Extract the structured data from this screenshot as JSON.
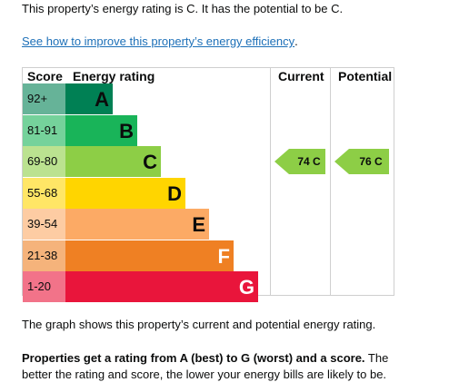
{
  "intro_text": "This property’s energy rating is C. It has the potential to be C.",
  "improve_link": "See how to improve this property’s energy efficiency",
  "improve_link_suffix": ".",
  "table": {
    "headers": {
      "score": "Score",
      "energy_rating": "Energy rating",
      "current": "Current",
      "potential": "Potential"
    },
    "bands": [
      {
        "range": "92+",
        "letter": "A",
        "color": "#008054",
        "score_bg": "#66b398"
      },
      {
        "range": "81-91",
        "letter": "B",
        "color": "#19b459",
        "score_bg": "#75d29b"
      },
      {
        "range": "69-80",
        "letter": "C",
        "color": "#8dce46",
        "score_bg": "#bbe290"
      },
      {
        "range": "55-68",
        "letter": "D",
        "color": "#ffd500",
        "score_bg": "#ffe666"
      },
      {
        "range": "39-54",
        "letter": "E",
        "color": "#fcaa65",
        "score_bg": "#fdcca3"
      },
      {
        "range": "21-38",
        "letter": "F",
        "color": "#ef8023",
        "score_bg": "#f5b37b"
      },
      {
        "range": "1-20",
        "letter": "G",
        "color": "#e9153b",
        "score_bg": "#f27389"
      }
    ],
    "current": {
      "label": "74 C",
      "band": "C",
      "color": "#8dce46"
    },
    "potential": {
      "label": "76 C",
      "band": "C",
      "color": "#8dce46"
    }
  },
  "footer": {
    "graph_note": "The graph shows this property’s current and potential energy rating.",
    "bold_text": "Properties get a rating from A (best) to G (worst) and a score.",
    "rest_text": " The better the rating and score, the lower your energy bills are likely to be."
  }
}
